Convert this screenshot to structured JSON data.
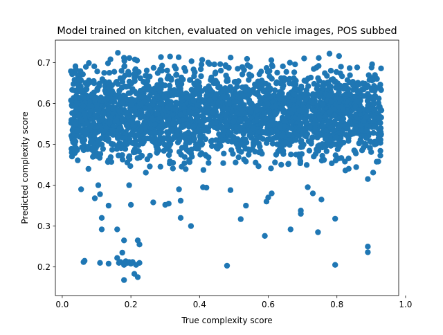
{
  "chart_data": {
    "type": "scatter",
    "title": "Model trained on kitchen, evaluated on vehicle images, POS subbed",
    "xlabel": "True complexity score",
    "ylabel": "Predicted complexity score",
    "xlim": [
      -0.02,
      0.98
    ],
    "ylim": [
      0.13,
      0.755
    ],
    "xticks": [
      0.0,
      0.2,
      0.4,
      0.6,
      0.8,
      1.0
    ],
    "xtick_labels": [
      "0.0",
      "0.2",
      "0.4",
      "0.6",
      "0.8",
      "1.0"
    ],
    "yticks": [
      0.2,
      0.3,
      0.4,
      0.5,
      0.6,
      0.7
    ],
    "ytick_labels": [
      "0.2",
      "0.3",
      "0.4",
      "0.5",
      "0.6",
      "0.7"
    ],
    "grid": false,
    "legend": "none",
    "marker_color": "#1f77b4",
    "series": [
      {
        "points": [
          [
            0.065,
            0.215
          ],
          [
            0.062,
            0.212
          ],
          [
            0.11,
            0.21
          ],
          [
            0.135,
            0.208
          ],
          [
            0.16,
            0.222
          ],
          [
            0.165,
            0.21
          ],
          [
            0.17,
            0.212
          ],
          [
            0.175,
            0.235
          ],
          [
            0.18,
            0.205
          ],
          [
            0.185,
            0.214
          ],
          [
            0.19,
            0.21
          ],
          [
            0.195,
            0.212
          ],
          [
            0.2,
            0.208
          ],
          [
            0.205,
            0.212
          ],
          [
            0.21,
            0.183
          ],
          [
            0.215,
            0.205
          ],
          [
            0.22,
            0.175
          ],
          [
            0.225,
            0.21
          ],
          [
            0.18,
            0.168
          ],
          [
            0.22,
            0.265
          ],
          [
            0.225,
            0.255
          ],
          [
            0.18,
            0.265
          ],
          [
            0.16,
            0.292
          ],
          [
            0.115,
            0.292
          ],
          [
            0.115,
            0.32
          ],
          [
            0.135,
            0.35
          ],
          [
            0.2,
            0.352
          ],
          [
            0.3,
            0.352
          ],
          [
            0.31,
            0.355
          ],
          [
            0.345,
            0.32
          ],
          [
            0.375,
            0.3
          ],
          [
            0.345,
            0.362
          ],
          [
            0.48,
            0.203
          ],
          [
            0.52,
            0.317
          ],
          [
            0.535,
            0.35
          ],
          [
            0.59,
            0.276
          ],
          [
            0.665,
            0.292
          ],
          [
            0.695,
            0.338
          ],
          [
            0.695,
            0.33
          ],
          [
            0.745,
            0.285
          ],
          [
            0.795,
            0.318
          ],
          [
            0.795,
            0.205
          ],
          [
            0.89,
            0.25
          ],
          [
            0.89,
            0.236
          ],
          [
            0.055,
            0.39
          ],
          [
            0.095,
            0.368
          ],
          [
            0.11,
            0.378
          ],
          [
            0.105,
            0.4
          ],
          [
            0.195,
            0.4
          ],
          [
            0.265,
            0.358
          ],
          [
            0.34,
            0.39
          ],
          [
            0.42,
            0.394
          ],
          [
            0.41,
            0.395
          ],
          [
            0.49,
            0.388
          ],
          [
            0.6,
            0.37
          ],
          [
            0.595,
            0.36
          ],
          [
            0.61,
            0.38
          ],
          [
            0.715,
            0.395
          ],
          [
            0.73,
            0.38
          ],
          [
            0.755,
            0.365
          ],
          [
            0.89,
            0.415
          ]
        ]
      }
    ]
  }
}
